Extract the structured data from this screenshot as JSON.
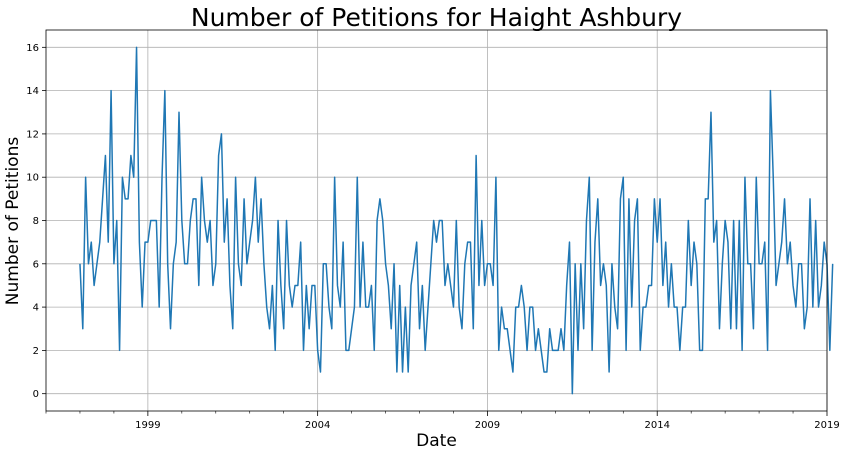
{
  "chart_data": {
    "type": "line",
    "title": "Number of Petitions for Haight Ashbury",
    "xlabel": "Date",
    "ylabel": "Number of Petitions",
    "x_tick_labels": [
      "1999",
      "2004",
      "2009",
      "2014",
      "2019"
    ],
    "x_tick_years": [
      1999,
      2004,
      2009,
      2014,
      2019
    ],
    "y_ticks": [
      0,
      2,
      4,
      6,
      8,
      10,
      12,
      14,
      16
    ],
    "xlim": [
      "1996-01",
      "2019-01"
    ],
    "ylim": [
      -0.8,
      16.8
    ],
    "grid": true,
    "series": [
      {
        "color": "#1f77b4",
        "start": "1997-01",
        "frequency": "monthly",
        "values": [
          6,
          3,
          10,
          6,
          7,
          5,
          6,
          7,
          9,
          11,
          7,
          14,
          6,
          8,
          2,
          10,
          9,
          9,
          11,
          10,
          16,
          7,
          4,
          7,
          7,
          8,
          8,
          8,
          4,
          10,
          14,
          6,
          3,
          6,
          7,
          13,
          8,
          6,
          6,
          8,
          9,
          9,
          5,
          10,
          8,
          7,
          8,
          5,
          6,
          11,
          12,
          7,
          9,
          5,
          3,
          10,
          6,
          5,
          9,
          6,
          7,
          8,
          10,
          7,
          9,
          6,
          4,
          3,
          5,
          2,
          8,
          5,
          3,
          8,
          5,
          4,
          5,
          5,
          7,
          2,
          5,
          3,
          5,
          5,
          2,
          1,
          6,
          6,
          4,
          3,
          10,
          5,
          4,
          7,
          2,
          2,
          3,
          4,
          10,
          4,
          7,
          4,
          4,
          5,
          2,
          8,
          9,
          8,
          6,
          5,
          3,
          6,
          1,
          5,
          1,
          4,
          1,
          5,
          6,
          7,
          3,
          5,
          2,
          4,
          6,
          8,
          7,
          8,
          8,
          5,
          6,
          5,
          4,
          8,
          4,
          3,
          6,
          7,
          7,
          3,
          11,
          5,
          8,
          5,
          6,
          6,
          5,
          10,
          2,
          4,
          3,
          3,
          2,
          1,
          4,
          4,
          5,
          4,
          2,
          4,
          4,
          2,
          3,
          2,
          1,
          1,
          3,
          2,
          2,
          2,
          3,
          2,
          5,
          7,
          0,
          6,
          2,
          6,
          3,
          8,
          10,
          2,
          7,
          9,
          5,
          6,
          5,
          1,
          6,
          4,
          3,
          9,
          10,
          2,
          9,
          4,
          8,
          9,
          2,
          4,
          4,
          5,
          5,
          9,
          7,
          9,
          5,
          7,
          4,
          6,
          4,
          4,
          2,
          4,
          4,
          8,
          5,
          7,
          6,
          2,
          2,
          9,
          9,
          13,
          7,
          8,
          3,
          6,
          8,
          7,
          3,
          8,
          3,
          8,
          2,
          10,
          6,
          6,
          3,
          10,
          6,
          6,
          7,
          2,
          14,
          10,
          5,
          6,
          7,
          9,
          6,
          7,
          5,
          4,
          6,
          6,
          3,
          4,
          9,
          4,
          8,
          4,
          5,
          7,
          6,
          2,
          6
        ]
      }
    ]
  }
}
